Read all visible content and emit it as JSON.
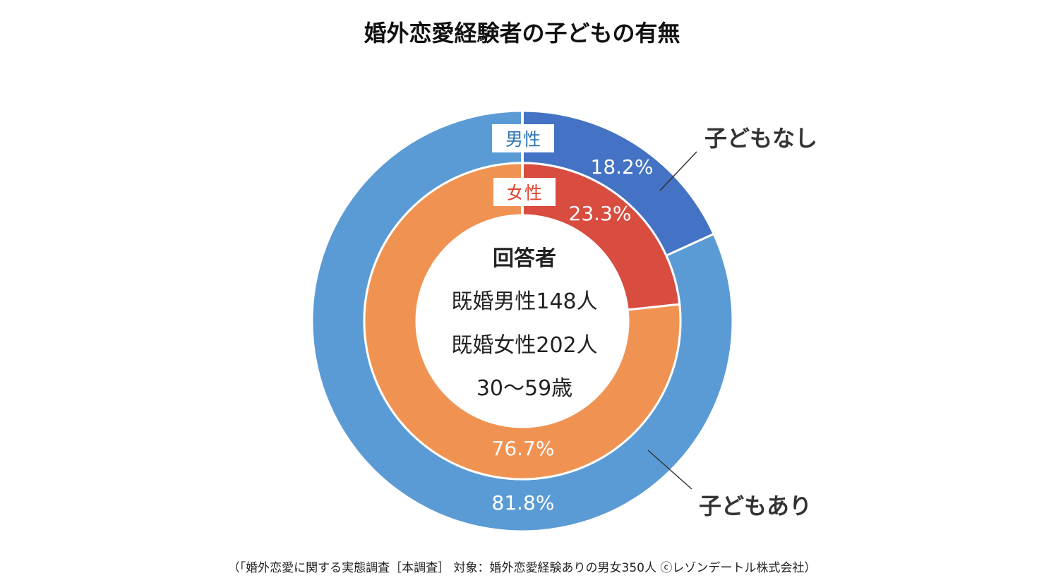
{
  "title": "婚外恋愛経験者の子どもの有無",
  "source": "（「婚外恋愛に関する実態調査［本調査］ 対象：婚外恋愛経験ありの男女350人 ⓒレゾンデートル株式会社）",
  "colors": {
    "outer_none": "#4472C4",
    "outer_yes": "#5B9BD5",
    "inner_none": "#D94C40",
    "inner_yes": "#F09352",
    "male_label": "#2E75B6",
    "female_label": "#E0442F"
  },
  "chart_data": {
    "type": "donut",
    "title": "婚外恋愛経験者の子どもの有無",
    "categories": [
      "子どもなし",
      "子どもあり"
    ],
    "series": [
      {
        "name": "男性",
        "ring": "outer",
        "values": [
          18.2,
          81.8
        ],
        "labels": [
          "18.2%",
          "81.8%"
        ]
      },
      {
        "name": "女性",
        "ring": "inner",
        "values": [
          23.3,
          76.7
        ],
        "labels": [
          "23.3%",
          "76.7%"
        ]
      }
    ],
    "center_text": {
      "title": "回答者",
      "lines": [
        "既婚男性148人",
        "既婚女性202人",
        "30～59歳"
      ]
    }
  }
}
